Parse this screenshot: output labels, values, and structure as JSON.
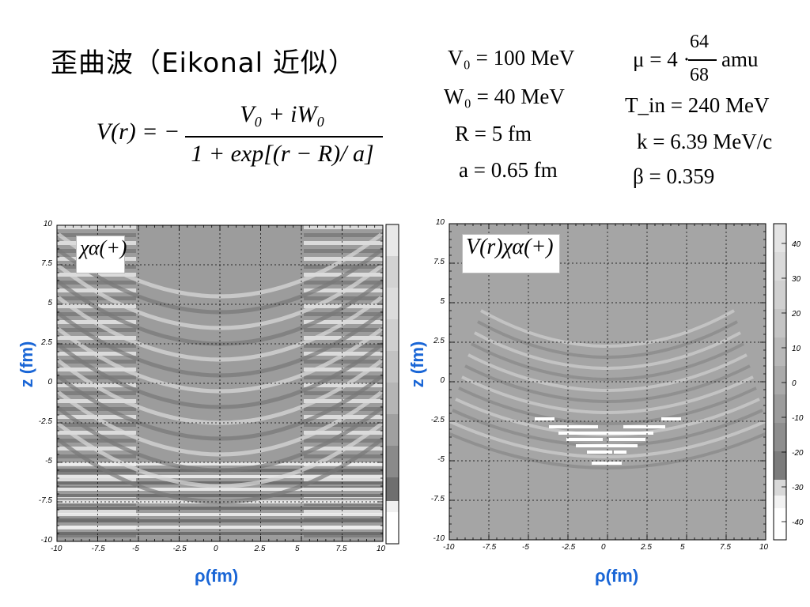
{
  "title": "歪曲波（Eikonal 近似）",
  "formula": {
    "lhs": "V(r) = −",
    "numerator": "V₀ + iW₀",
    "denominator": "1 + exp[(r − R)/ a]"
  },
  "params_left": [
    "V₀ = 100 MeV",
    "W₀ = 40 MeV",
    "R = 5 fm",
    "a = 0.65 fm"
  ],
  "params_right": {
    "mu_prefix": "μ = 4 ·",
    "mu_num": "64",
    "mu_den": "68",
    "mu_unit": "amu",
    "tin": "T_in = 240 MeV",
    "k": "k = 6.39 MeV/c",
    "beta": "β = 0.359"
  },
  "panels": [
    {
      "inset_label": "χα(+)",
      "xlabel": "ρ(fm)",
      "ylabel": "z (fm)",
      "x_ticks": [
        "-10",
        "-7.5",
        "-5",
        "-2.5",
        "0",
        "2.5",
        "5",
        "7.5",
        "10"
      ],
      "y_ticks": [
        "10",
        "7.5",
        "5",
        "2.5",
        "0",
        "-2.5",
        "-5",
        "-7.5",
        "-10"
      ],
      "colorbar_ticks": []
    },
    {
      "inset_label": "V(r)χα(+)",
      "xlabel": "ρ(fm)",
      "ylabel": "z (fm)",
      "x_ticks": [
        "-10",
        "-7.5",
        "-5",
        "-2.5",
        "0",
        "2.5",
        "5",
        "7.5",
        "10"
      ],
      "y_ticks": [
        "10",
        "7.5",
        "5",
        "2.5",
        "0",
        "-2.5",
        "-5",
        "-7.5",
        "-10"
      ],
      "colorbar_ticks": [
        "40",
        "30",
        "20",
        "10",
        "0",
        "-10",
        "-20",
        "-30",
        "-40"
      ]
    }
  ],
  "chart_data": [
    {
      "type": "heatmap",
      "title": "",
      "xlabel": "ρ(fm)",
      "ylabel": "z (fm)",
      "xlim": [
        -10,
        10
      ],
      "ylim": [
        -10,
        10
      ],
      "grid": true,
      "colormap": "grayscale",
      "description_values": "distorted wave χα(+) over ρ–z plane"
    },
    {
      "type": "heatmap",
      "title": "",
      "xlabel": "ρ(fm)",
      "ylabel": "z (fm)",
      "xlim": [
        -10,
        10
      ],
      "ylim": [
        -10,
        10
      ],
      "zlim": [
        -40,
        40
      ],
      "grid": true,
      "colormap": "grayscale"
    }
  ]
}
